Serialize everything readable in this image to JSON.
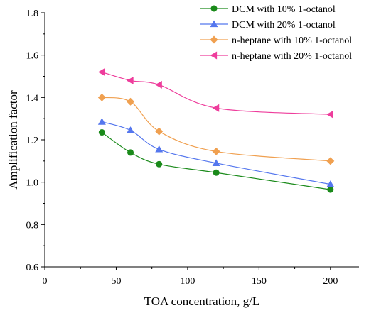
{
  "chart_data": {
    "type": "line",
    "title": "",
    "xlabel": "TOA concentration, g/L",
    "ylabel": "Amplification factor",
    "xlim": [
      0,
      220
    ],
    "ylim": [
      0.6,
      1.8
    ],
    "xticks": [
      0,
      50,
      100,
      150,
      200
    ],
    "xtick_labels": [
      "0",
      "50",
      "100",
      "150",
      "200"
    ],
    "yticks": [
      0.6,
      0.8,
      1.0,
      1.2,
      1.4,
      1.6,
      1.8
    ],
    "ytick_labels": [
      "0.6",
      "0.8",
      "1.0",
      "1.2",
      "1.4",
      "1.6",
      "1.8"
    ],
    "grid": false,
    "legend_position": "top-right",
    "series": [
      {
        "name": "DCM with 10% 1-octanol",
        "color": "#1a8a1a",
        "marker": "circle",
        "x": [
          40,
          60,
          80,
          120,
          200
        ],
        "y": [
          1.235,
          1.14,
          1.085,
          1.045,
          0.965
        ]
      },
      {
        "name": "DCM with 20% 1-octanol",
        "color": "#5577ee",
        "marker": "triangle-up",
        "x": [
          40,
          60,
          80,
          120,
          200
        ],
        "y": [
          1.285,
          1.245,
          1.155,
          1.09,
          0.99
        ]
      },
      {
        "name": "n-heptane with 10% 1-octanol",
        "color": "#f0a050",
        "marker": "diamond",
        "x": [
          40,
          60,
          80,
          120,
          200
        ],
        "y": [
          1.4,
          1.38,
          1.24,
          1.145,
          1.1
        ]
      },
      {
        "name": "n-heptane with 20% 1-octanol",
        "color": "#ee3d9c",
        "marker": "triangle-left",
        "x": [
          40,
          60,
          80,
          120,
          200
        ],
        "y": [
          1.52,
          1.48,
          1.46,
          1.35,
          1.32
        ]
      }
    ]
  }
}
